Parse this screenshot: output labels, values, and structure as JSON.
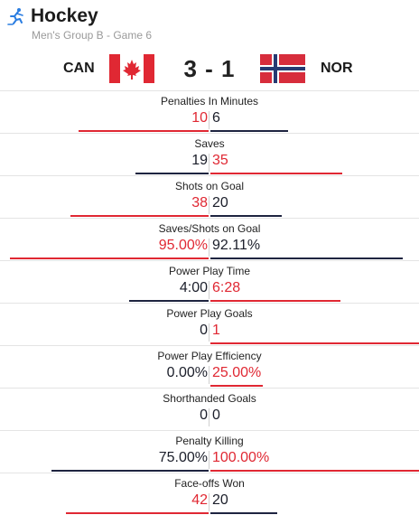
{
  "header": {
    "sport": "Hockey",
    "subtitle": "Men's Group B - Game 6",
    "icon": "hockey-player-icon"
  },
  "match": {
    "home_team": "CAN",
    "away_team": "NOR",
    "score": "3 - 1",
    "home_flag": "canada-flag-icon",
    "away_flag": "norway-flag-icon"
  },
  "colors": {
    "red": "#e02833",
    "dark": "#1e2440"
  },
  "stats": [
    {
      "label": "Penalties In Minutes",
      "left": "10",
      "right": "6",
      "left_color": "red",
      "right_color": "dark",
      "left_bar": 0.62,
      "right_bar": 0.37
    },
    {
      "label": "Saves",
      "left": "19",
      "right": "35",
      "left_color": "dark",
      "right_color": "red",
      "left_bar": 0.35,
      "right_bar": 0.63
    },
    {
      "label": "Shots on Goal",
      "left": "38",
      "right": "20",
      "left_color": "red",
      "right_color": "dark",
      "left_bar": 0.66,
      "right_bar": 0.34
    },
    {
      "label": "Saves/Shots on Goal",
      "left": "95.00%",
      "right": "92.11%",
      "left_color": "red",
      "right_color": "dark",
      "left_bar": 0.95,
      "right_bar": 0.92
    },
    {
      "label": "Power Play Time",
      "left": "4:00",
      "right": "6:28",
      "left_color": "dark",
      "right_color": "red",
      "left_bar": 0.38,
      "right_bar": 0.62
    },
    {
      "label": "Power Play Goals",
      "left": "0",
      "right": "1",
      "left_color": "dark",
      "right_color": "red",
      "left_bar": 0,
      "right_bar": 1
    },
    {
      "label": "Power Play Efficiency",
      "left": "0.00%",
      "right": "25.00%",
      "left_color": "dark",
      "right_color": "red",
      "left_bar": 0,
      "right_bar": 0.25
    },
    {
      "label": "Shorthanded Goals",
      "left": "0",
      "right": "0",
      "left_color": "dark",
      "right_color": "dark",
      "left_bar": 0,
      "right_bar": 0
    },
    {
      "label": "Penalty Killing",
      "left": "75.00%",
      "right": "100.00%",
      "left_color": "dark",
      "right_color": "red",
      "left_bar": 0.75,
      "right_bar": 1
    },
    {
      "label": "Face-offs Won",
      "left": "42",
      "right": "20",
      "left_color": "red",
      "right_color": "dark",
      "left_bar": 0.68,
      "right_bar": 0.32
    }
  ]
}
